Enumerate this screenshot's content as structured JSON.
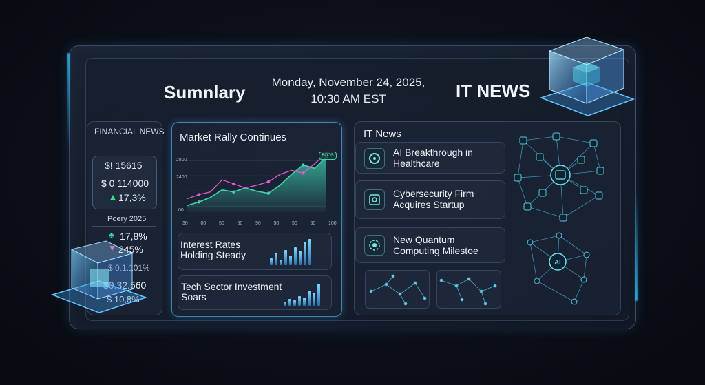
{
  "header": {
    "summary_title": "Sumnlary",
    "datetime_line1": "Monday, November 24, 2025,",
    "datetime_line2": "10:30 AM EST",
    "it_title": "IT NEWS"
  },
  "financial": {
    "heading": "FINANCIAL NEWS",
    "box_lines": [
      "$! 15615",
      "$ 0 114000",
      "17,3%"
    ],
    "period_label": "Poery 2025",
    "stat1": "17,8%",
    "stat2": "245%",
    "stat3": "$ 0.1.101%",
    "stat4": "$0.32.560",
    "stat5": "$ 10,8%"
  },
  "market": {
    "title": "Market Rally Continues",
    "badge": "BOOS",
    "y_ticks": [
      "2800",
      "2400",
      "00"
    ],
    "x_ticks": [
      "30",
      "00",
      "50",
      "60",
      "90",
      "50",
      "50",
      "50",
      "100"
    ],
    "card1_line1": "Interest Rates",
    "card1_line2": "Holding Steady",
    "card2_line1": "Tech Sector Investment",
    "card2_line2": "Soars"
  },
  "it_news": {
    "heading": "IT News",
    "items": [
      {
        "line1": "AI Breakthrough in",
        "line2": "Healthcare",
        "icon": "ai-circle-icon"
      },
      {
        "line1": "Cybersecurity Firm",
        "line2": "Acquires Startup",
        "icon": "shield-target-icon"
      },
      {
        "line1": "New Quantum",
        "line2": "Computing Milestoe",
        "icon": "quantum-gear-icon"
      }
    ],
    "network_label": "AI"
  },
  "colors": {
    "accent_cyan": "#2ec5ff",
    "chart_teal": "#3fd3b0",
    "chart_pink": "#e25ad0",
    "up_green": "#3ddc84",
    "down_pink": "#ff5c8a"
  },
  "chart_data": {
    "type": "area",
    "title": "Market Rally Continues",
    "x": [
      0,
      1,
      2,
      3,
      4,
      5,
      6,
      7,
      8,
      9,
      10,
      11,
      12
    ],
    "series": [
      {
        "values": [
          2100,
          2150,
          2220,
          2330,
          2300,
          2360,
          2310,
          2280,
          2400,
          2560,
          2700,
          2650,
          2820
        ]
      },
      {
        "values": [
          2200,
          2260,
          2300,
          2480,
          2420,
          2360,
          2400,
          2450,
          2560,
          2620,
          2580,
          2720,
          2880
        ]
      }
    ],
    "ylim": [
      2000,
      2900
    ]
  }
}
